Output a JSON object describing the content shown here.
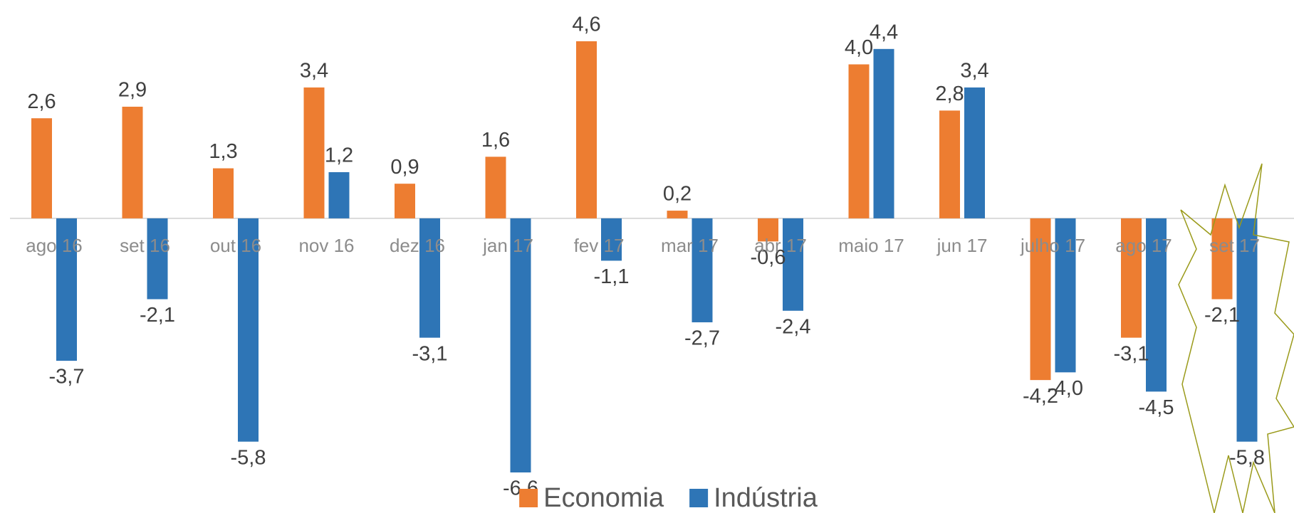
{
  "chart_data": {
    "type": "bar",
    "categories": [
      "ago 16",
      "set 16",
      "out 16",
      "nov 16",
      "dez 16",
      "jan 17",
      "fev 17",
      "mar 17",
      "abr 17",
      "maio 17",
      "jun 17",
      "julho 17",
      "ago 17",
      "set 17"
    ],
    "series": [
      {
        "name": "Economia",
        "color": "#ed7d31",
        "values": [
          2.6,
          2.9,
          1.3,
          3.4,
          0.9,
          1.6,
          4.6,
          0.2,
          -0.6,
          4.0,
          2.8,
          -4.2,
          -3.1,
          -2.1
        ],
        "value_labels": [
          "2,6",
          "2,9",
          "1,3",
          "3,4",
          "0,9",
          "1,6",
          "4,6",
          "0,2",
          "-0,6",
          "4,0",
          "2,8",
          "-4,2",
          "-3,1",
          "-2,1"
        ]
      },
      {
        "name": "Indústria",
        "color": "#2e75b6",
        "values": [
          -3.7,
          -2.1,
          -5.8,
          1.2,
          -3.1,
          -6.6,
          -1.1,
          -2.7,
          -2.4,
          4.4,
          3.4,
          -4.0,
          -4.5,
          -5.8
        ],
        "value_labels": [
          "-3,7",
          "-2,1",
          "-5,8",
          "1,2",
          "-3,1",
          "-6,6",
          "-1,1",
          "-2,7",
          "-2,4",
          "4,4",
          "3,4",
          "-4,0",
          "-4,5",
          "-5,8"
        ]
      }
    ],
    "legend": "bottom"
  }
}
